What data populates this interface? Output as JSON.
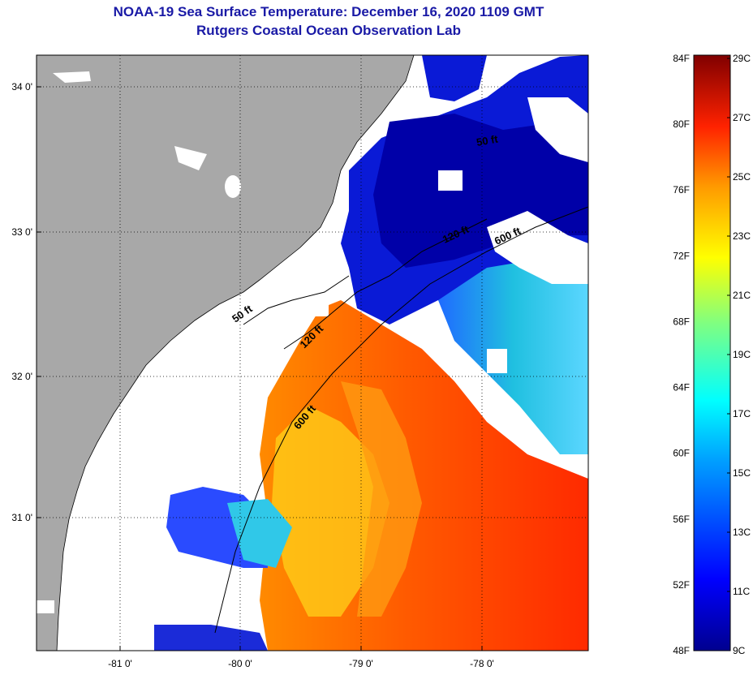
{
  "title": "NOAA-19 Sea Surface Temperature:  December 16, 2020 1109 GMT",
  "subtitle": "Rutgers Coastal Ocean Observation Lab",
  "axes": {
    "longitude_ticks": [
      "-81 0'",
      "-80 0'",
      "-79 0'",
      "-78 0'"
    ],
    "latitude_ticks": [
      "34 0'",
      "33 0'",
      "32 0'",
      "31 0'"
    ]
  },
  "contours": [
    {
      "label": "50 ft",
      "depth_ft": 50
    },
    {
      "label": "120 ft",
      "depth_ft": 120
    },
    {
      "label": "600 ft",
      "depth_ft": 600
    },
    {
      "label": "50 ft",
      "depth_ft": 50
    },
    {
      "label": "120 ft",
      "depth_ft": 120
    },
    {
      "label": "600 ft",
      "depth_ft": 600
    }
  ],
  "colorbar": {
    "fahrenheit": [
      "84F",
      "80F",
      "76F",
      "72F",
      "68F",
      "64F",
      "60F",
      "56F",
      "52F",
      "48F"
    ],
    "celsius": [
      "29C",
      "27C",
      "25C",
      "23C",
      "21C",
      "19C",
      "17C",
      "15C",
      "13C",
      "11C",
      "9C"
    ],
    "range_f": [
      48,
      84
    ],
    "range_c": [
      9,
      29
    ]
  },
  "colors": {
    "land": "#a8a8a8",
    "cloud": "#ffffff",
    "title": "#1a1aa6",
    "cold": "#00008f",
    "warm": "#ff3300"
  }
}
